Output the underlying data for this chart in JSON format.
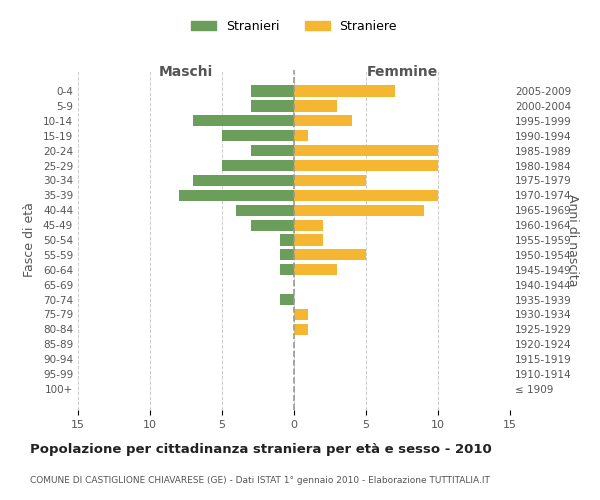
{
  "age_groups": [
    "100+",
    "95-99",
    "90-94",
    "85-89",
    "80-84",
    "75-79",
    "70-74",
    "65-69",
    "60-64",
    "55-59",
    "50-54",
    "45-49",
    "40-44",
    "35-39",
    "30-34",
    "25-29",
    "20-24",
    "15-19",
    "10-14",
    "5-9",
    "0-4"
  ],
  "birth_years": [
    "≤ 1909",
    "1910-1914",
    "1915-1919",
    "1920-1924",
    "1925-1929",
    "1930-1934",
    "1935-1939",
    "1940-1944",
    "1945-1949",
    "1950-1954",
    "1955-1959",
    "1960-1964",
    "1965-1969",
    "1970-1974",
    "1975-1979",
    "1980-1984",
    "1985-1989",
    "1990-1994",
    "1995-1999",
    "2000-2004",
    "2005-2009"
  ],
  "males": [
    0,
    0,
    0,
    0,
    0,
    0,
    1,
    0,
    1,
    1,
    1,
    3,
    4,
    8,
    7,
    5,
    3,
    5,
    7,
    3,
    3
  ],
  "females": [
    0,
    0,
    0,
    0,
    1,
    1,
    0,
    0,
    3,
    5,
    2,
    2,
    9,
    10,
    5,
    10,
    10,
    1,
    4,
    3,
    7
  ],
  "male_color": "#6a9e5a",
  "female_color": "#f5b731",
  "background_color": "#ffffff",
  "grid_color": "#cccccc",
  "title": "Popolazione per cittadinanza straniera per età e sesso - 2010",
  "subtitle": "COMUNE DI CASTIGLIONE CHIAVARESE (GE) - Dati ISTAT 1° gennaio 2010 - Elaborazione TUTTITALIA.IT",
  "ylabel_left": "Fasce di età",
  "ylabel_right": "Anni di nascita",
  "legend_stranieri": "Stranieri",
  "legend_straniere": "Straniere",
  "xlim": 15,
  "maschi_label": "Maschi",
  "femmine_label": "Femmine"
}
